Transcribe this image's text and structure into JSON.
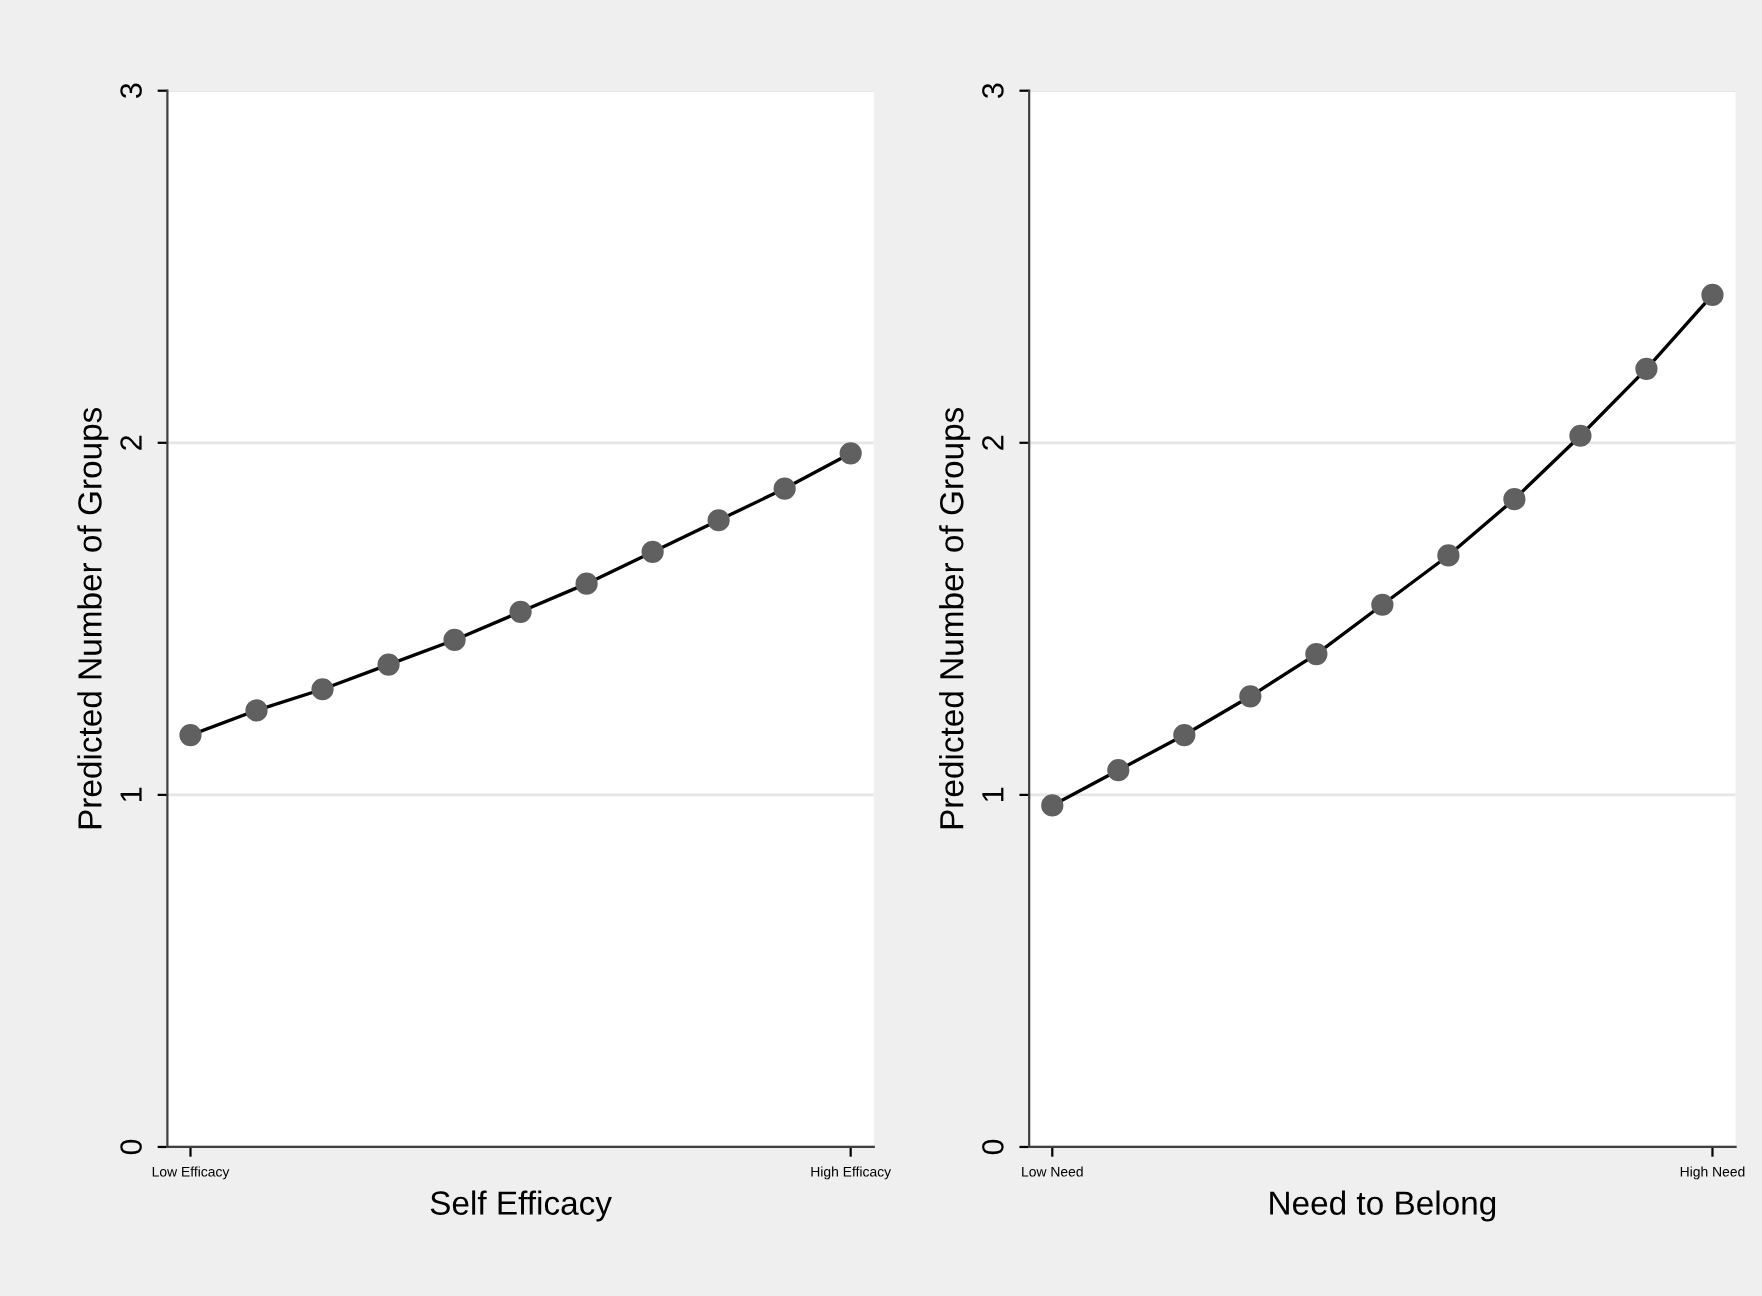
{
  "chart_data": [
    {
      "type": "line",
      "xlabel": "Self Efficacy",
      "ylabel": "Predicted Number of Groups",
      "categories": [
        "Low Efficacy",
        null,
        null,
        null,
        null,
        null,
        null,
        null,
        null,
        null,
        "High Efficacy"
      ],
      "series": [
        {
          "color": "#606060",
          "values": [
            1.17,
            1.24,
            1.3,
            1.37,
            1.44,
            1.52,
            1.6,
            1.69,
            1.78,
            1.87,
            1.97
          ]
        }
      ],
      "ylim": [
        0,
        3
      ],
      "yticks": [
        0,
        1,
        2,
        3
      ],
      "grid": "y",
      "marker": "circle",
      "line_style": "solid"
    },
    {
      "type": "line",
      "xlabel": "Need to Belong",
      "ylabel": "Predicted Number of Groups",
      "categories": [
        "Low Need",
        null,
        null,
        null,
        null,
        null,
        null,
        null,
        null,
        null,
        "High Need"
      ],
      "series": [
        {
          "color": "#606060",
          "values": [
            0.97,
            1.07,
            1.17,
            1.28,
            1.4,
            1.54,
            1.68,
            1.84,
            2.02,
            2.21,
            2.42
          ]
        }
      ],
      "ylim": [
        0,
        3
      ],
      "yticks": [
        0,
        1,
        2,
        3
      ],
      "grid": "y",
      "marker": "circle",
      "line_style": "solid"
    }
  ]
}
